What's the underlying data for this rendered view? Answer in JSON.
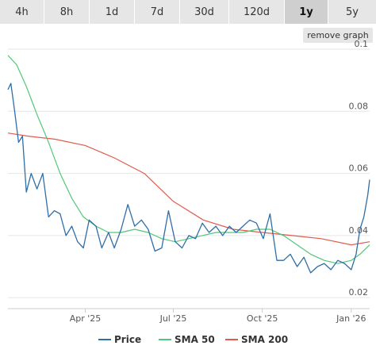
{
  "tabs": [
    {
      "label": "4h",
      "active": false
    },
    {
      "label": "8h",
      "active": false
    },
    {
      "label": "1d",
      "active": false
    },
    {
      "label": "7d",
      "active": false
    },
    {
      "label": "30d",
      "active": false
    },
    {
      "label": "120d",
      "active": false
    },
    {
      "label": "1y",
      "active": true
    },
    {
      "label": "5y",
      "active": false
    }
  ],
  "remove_graph_label": "remove graph",
  "chart_data": {
    "type": "line",
    "x_tick_labels": [
      "Apr '25",
      "Jul '25",
      "Oct '25",
      "Jan '26"
    ],
    "x_tick_dates": [
      "2025-04-01",
      "2025-07-01",
      "2025-10-01",
      "2026-01-01"
    ],
    "y_tick_labels": [
      "0.1",
      "0.08",
      "0.06",
      "0.04",
      "0.02"
    ],
    "ylim": [
      0.018,
      0.1
    ],
    "xlim": [
      "2025-01-11",
      "2026-01-20"
    ],
    "grid": true,
    "legend_position": "bottom",
    "series": [
      {
        "name": "Price",
        "color": "#2f6ea7",
        "x": [
          "2025-01-11",
          "2025-01-14",
          "2025-01-18",
          "2025-01-22",
          "2025-01-26",
          "2025-01-30",
          "2025-02-04",
          "2025-02-10",
          "2025-02-16",
          "2025-02-22",
          "2025-02-28",
          "2025-03-06",
          "2025-03-12",
          "2025-03-18",
          "2025-03-24",
          "2025-03-30",
          "2025-04-05",
          "2025-04-12",
          "2025-04-18",
          "2025-04-25",
          "2025-05-01",
          "2025-05-08",
          "2025-05-15",
          "2025-05-22",
          "2025-05-29",
          "2025-06-05",
          "2025-06-12",
          "2025-06-19",
          "2025-06-26",
          "2025-07-03",
          "2025-07-10",
          "2025-07-17",
          "2025-07-24",
          "2025-07-31",
          "2025-08-07",
          "2025-08-14",
          "2025-08-21",
          "2025-08-28",
          "2025-09-04",
          "2025-09-11",
          "2025-09-18",
          "2025-09-25",
          "2025-10-02",
          "2025-10-09",
          "2025-10-16",
          "2025-10-23",
          "2025-10-30",
          "2025-11-06",
          "2025-11-13",
          "2025-11-20",
          "2025-11-27",
          "2025-12-04",
          "2025-12-11",
          "2025-12-18",
          "2025-12-25",
          "2026-01-01",
          "2026-01-06",
          "2026-01-10",
          "2026-01-14",
          "2026-01-18",
          "2026-01-20"
        ],
        "values": [
          0.087,
          0.089,
          0.08,
          0.07,
          0.072,
          0.054,
          0.06,
          0.055,
          0.06,
          0.046,
          0.048,
          0.047,
          0.04,
          0.043,
          0.038,
          0.036,
          0.045,
          0.043,
          0.036,
          0.041,
          0.036,
          0.042,
          0.05,
          0.043,
          0.045,
          0.042,
          0.035,
          0.036,
          0.048,
          0.038,
          0.036,
          0.04,
          0.039,
          0.044,
          0.041,
          0.043,
          0.04,
          0.043,
          0.041,
          0.043,
          0.045,
          0.044,
          0.039,
          0.047,
          0.032,
          0.032,
          0.034,
          0.03,
          0.033,
          0.028,
          0.03,
          0.031,
          0.029,
          0.032,
          0.031,
          0.029,
          0.034,
          0.042,
          0.046,
          0.053,
          0.058
        ]
      },
      {
        "name": "SMA 50",
        "color": "#50c878",
        "x": [
          "2025-01-11",
          "2025-01-20",
          "2025-01-30",
          "2025-02-10",
          "2025-02-22",
          "2025-03-06",
          "2025-03-18",
          "2025-03-30",
          "2025-04-12",
          "2025-04-25",
          "2025-05-08",
          "2025-05-22",
          "2025-06-05",
          "2025-06-19",
          "2025-07-03",
          "2025-07-17",
          "2025-07-31",
          "2025-08-14",
          "2025-08-28",
          "2025-09-11",
          "2025-09-25",
          "2025-10-09",
          "2025-10-23",
          "2025-11-06",
          "2025-11-20",
          "2025-12-04",
          "2025-12-18",
          "2026-01-01",
          "2026-01-10",
          "2026-01-20"
        ],
        "values": [
          0.098,
          0.095,
          0.088,
          0.079,
          0.07,
          0.06,
          0.052,
          0.046,
          0.043,
          0.041,
          0.041,
          0.042,
          0.041,
          0.039,
          0.038,
          0.039,
          0.04,
          0.041,
          0.041,
          0.041,
          0.042,
          0.042,
          0.04,
          0.037,
          0.034,
          0.032,
          0.031,
          0.032,
          0.034,
          0.037
        ]
      },
      {
        "name": "SMA 200",
        "color": "#e05b4c",
        "x": [
          "2025-01-11",
          "2025-02-01",
          "2025-03-01",
          "2025-04-01",
          "2025-05-01",
          "2025-06-01",
          "2025-07-01",
          "2025-08-01",
          "2025-09-01",
          "2025-10-01",
          "2025-11-01",
          "2025-12-01",
          "2026-01-01",
          "2026-01-20"
        ],
        "values": [
          0.073,
          0.072,
          0.071,
          0.069,
          0.065,
          0.06,
          0.051,
          0.045,
          0.042,
          0.041,
          0.04,
          0.039,
          0.037,
          0.038
        ]
      }
    ]
  }
}
